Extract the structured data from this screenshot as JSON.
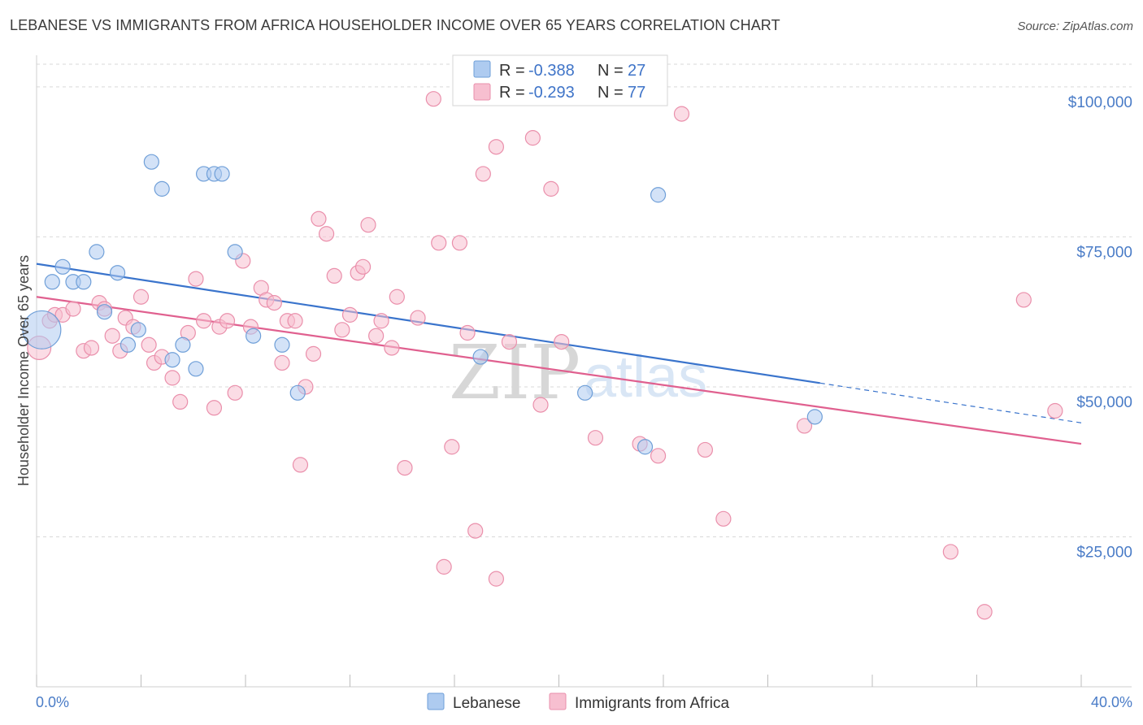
{
  "header": {
    "title": "LEBANESE VS IMMIGRANTS FROM AFRICA HOUSEHOLDER INCOME OVER 65 YEARS CORRELATION CHART",
    "source": "Source: ZipAtlas.com"
  },
  "watermark": {
    "zip": "ZIP",
    "atlas": "atlas"
  },
  "legend": {
    "rows": [
      {
        "r_label": "R = ",
        "r_value": "-0.388",
        "n_label": "N = ",
        "n_value": "27"
      },
      {
        "r_label": "R = ",
        "r_value": "-0.293",
        "n_label": "N = ",
        "n_value": "77"
      }
    ]
  },
  "colors": {
    "lebanese_fill": "#aecbf0",
    "lebanese_stroke": "#6f9fd8",
    "lebanese_line": "#3a74cc",
    "africa_fill": "#f7bfd0",
    "africa_stroke": "#ea8fab",
    "africa_line": "#e0608f",
    "tick_label": "#4a7cc7",
    "grid": "#d9d9d9"
  },
  "chart_data": {
    "type": "scatter",
    "ylabel": "Householder Income Over 65 years",
    "xlim": [
      0,
      40
    ],
    "ylim": [
      0,
      105000
    ],
    "y_ticks": [
      {
        "value": 100000,
        "label": "$100,000"
      },
      {
        "value": 75000,
        "label": "$75,000"
      },
      {
        "value": 50000,
        "label": "$50,000"
      },
      {
        "value": 25000,
        "label": "$25,000"
      }
    ],
    "x_tick_labels": {
      "min": "0.0%",
      "max": "40.0%"
    },
    "grid": true,
    "legend_position": "top-center",
    "series": [
      {
        "name": "Lebanese",
        "r": -0.388,
        "n": 27,
        "trend": {
          "x0": 0,
          "y0": 70500,
          "x_solid_end": 30,
          "x1": 40,
          "y1": 44000
        },
        "points": [
          [
            0.2,
            59500,
            2.6
          ],
          [
            0.6,
            67500,
            1
          ],
          [
            1.0,
            70000,
            1
          ],
          [
            1.4,
            67500,
            1
          ],
          [
            1.8,
            67500,
            1
          ],
          [
            2.3,
            72500,
            1
          ],
          [
            2.6,
            62500,
            1
          ],
          [
            3.1,
            69000,
            1
          ],
          [
            3.5,
            57000,
            1
          ],
          [
            3.9,
            59500,
            1
          ],
          [
            4.4,
            87500,
            1
          ],
          [
            4.8,
            83000,
            1
          ],
          [
            5.2,
            54500,
            1
          ],
          [
            5.6,
            57000,
            1
          ],
          [
            6.1,
            53000,
            1
          ],
          [
            6.4,
            85500,
            1
          ],
          [
            6.8,
            85500,
            1
          ],
          [
            7.1,
            85500,
            1
          ],
          [
            7.6,
            72500,
            1
          ],
          [
            8.3,
            58500,
            1
          ],
          [
            9.4,
            57000,
            1
          ],
          [
            10.0,
            49000,
            1
          ],
          [
            17.0,
            55000,
            1
          ],
          [
            21.0,
            49000,
            1
          ],
          [
            23.3,
            40000,
            1
          ],
          [
            23.8,
            82000,
            1
          ],
          [
            29.8,
            45000,
            1
          ]
        ]
      },
      {
        "name": "Immigrants from Africa",
        "r": -0.293,
        "n": 77,
        "trend": {
          "x0": 0,
          "y0": 65000,
          "x1": 40,
          "y1": 40500
        },
        "points": [
          [
            0.1,
            56500,
            1.6
          ],
          [
            0.5,
            61000,
            1
          ],
          [
            0.7,
            62000,
            1
          ],
          [
            1.0,
            62000,
            1
          ],
          [
            1.4,
            63000,
            1
          ],
          [
            1.8,
            56000,
            1
          ],
          [
            2.1,
            56500,
            1
          ],
          [
            2.4,
            64000,
            1
          ],
          [
            2.6,
            63000,
            1
          ],
          [
            2.9,
            58500,
            1
          ],
          [
            3.2,
            56000,
            1
          ],
          [
            3.4,
            61500,
            1
          ],
          [
            3.7,
            60000,
            1
          ],
          [
            4.0,
            65000,
            1
          ],
          [
            4.3,
            57000,
            1
          ],
          [
            4.5,
            54000,
            1
          ],
          [
            4.8,
            55000,
            1
          ],
          [
            5.2,
            51500,
            1
          ],
          [
            5.5,
            47500,
            1
          ],
          [
            5.8,
            59000,
            1
          ],
          [
            6.1,
            68000,
            1
          ],
          [
            6.4,
            61000,
            1
          ],
          [
            6.8,
            46500,
            1
          ],
          [
            7.0,
            60000,
            1
          ],
          [
            7.3,
            61000,
            1
          ],
          [
            7.6,
            49000,
            1
          ],
          [
            7.9,
            71000,
            1
          ],
          [
            8.2,
            60000,
            1
          ],
          [
            8.6,
            66500,
            1
          ],
          [
            8.8,
            64500,
            1
          ],
          [
            9.1,
            64000,
            1
          ],
          [
            9.4,
            54000,
            1
          ],
          [
            9.6,
            61000,
            1
          ],
          [
            9.9,
            61000,
            1
          ],
          [
            10.1,
            37000,
            1
          ],
          [
            10.3,
            50000,
            1
          ],
          [
            10.6,
            55500,
            1
          ],
          [
            10.8,
            78000,
            1
          ],
          [
            11.1,
            75500,
            1
          ],
          [
            11.4,
            68500,
            1
          ],
          [
            11.7,
            59500,
            1
          ],
          [
            12.0,
            62000,
            1
          ],
          [
            12.3,
            69000,
            1
          ],
          [
            12.5,
            70000,
            1
          ],
          [
            12.7,
            77000,
            1
          ],
          [
            13.0,
            58500,
            1
          ],
          [
            13.2,
            61000,
            1
          ],
          [
            13.6,
            56500,
            1
          ],
          [
            13.8,
            65000,
            1
          ],
          [
            14.1,
            36500,
            1
          ],
          [
            14.6,
            61500,
            1
          ],
          [
            15.2,
            98000,
            1
          ],
          [
            15.4,
            74000,
            1
          ],
          [
            15.6,
            20000,
            1
          ],
          [
            15.9,
            40000,
            1
          ],
          [
            16.2,
            74000,
            1
          ],
          [
            16.5,
            59000,
            1
          ],
          [
            16.8,
            26000,
            1
          ],
          [
            17.1,
            85500,
            1
          ],
          [
            17.6,
            90000,
            1
          ],
          [
            17.6,
            18000,
            1
          ],
          [
            18.1,
            57500,
            1
          ],
          [
            19.0,
            91500,
            1
          ],
          [
            19.3,
            47000,
            1
          ],
          [
            19.7,
            83000,
            1
          ],
          [
            20.1,
            57500,
            1
          ],
          [
            21.4,
            41500,
            1
          ],
          [
            23.1,
            40500,
            1
          ],
          [
            23.8,
            38500,
            1
          ],
          [
            24.7,
            95500,
            1
          ],
          [
            25.6,
            39500,
            1
          ],
          [
            26.3,
            28000,
            1
          ],
          [
            29.4,
            43500,
            1
          ],
          [
            35.0,
            22500,
            1
          ],
          [
            36.3,
            12500,
            1
          ],
          [
            37.8,
            64500,
            1
          ],
          [
            39.0,
            46000,
            1
          ]
        ]
      }
    ]
  }
}
